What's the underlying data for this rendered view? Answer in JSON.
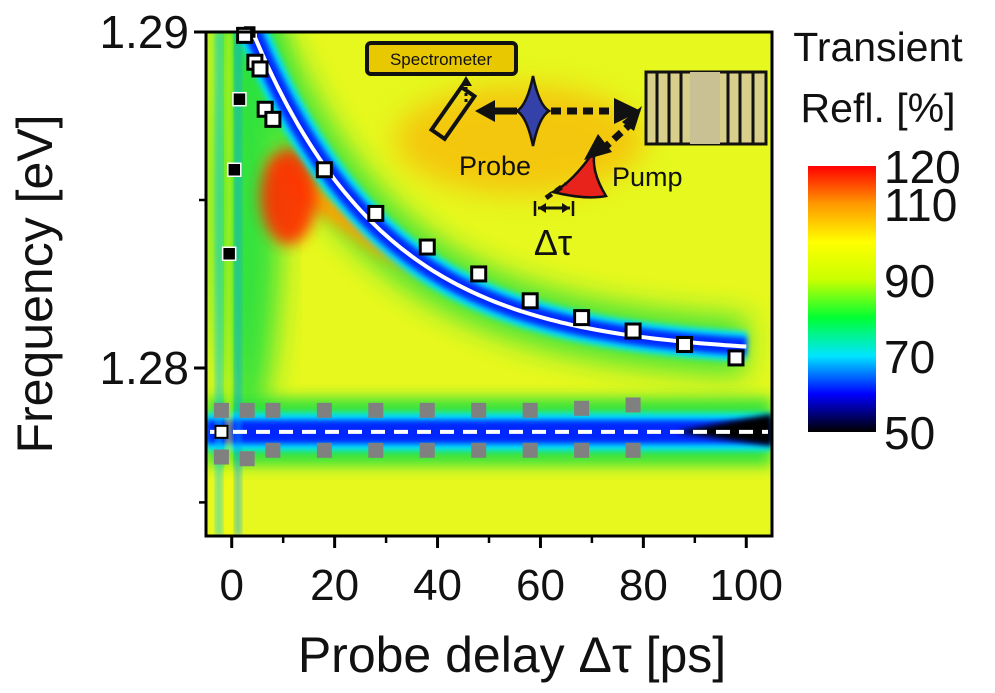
{
  "chart_data": {
    "type": "heatmap",
    "xlabel": "Probe delay Δτ [ps]",
    "ylabel": "Frequency [eV]",
    "xlim": [
      -5,
      105
    ],
    "ylim": [
      1.275,
      1.29
    ],
    "x_ticks": [
      0,
      20,
      40,
      60,
      80,
      100
    ],
    "x_tick_labels": [
      "0",
      "20",
      "40",
      "60",
      "80",
      "100"
    ],
    "y_ticks": [
      1.28,
      1.29
    ],
    "y_tick_labels": [
      "1.28",
      "1.29"
    ],
    "colorbar": {
      "title_line1": "Transient",
      "title_line2": "Refl. [%]",
      "range": [
        50,
        120
      ],
      "ticks": [
        50,
        70,
        90,
        110,
        120
      ],
      "tick_labels": [
        "50",
        "70",
        "90",
        "110",
        "120"
      ],
      "stops": [
        "#000000",
        "#0000ff",
        "#00e5ff",
        "#00ff33",
        "#c8ff00",
        "#ffff00",
        "#ff9900",
        "#ff0000"
      ]
    },
    "colors": {
      "background": "#e6f81e",
      "dip": "#0026ff",
      "dip_core": "#000000",
      "hot": "#ff2a00",
      "warm": "#ffa000",
      "green": "#20e040",
      "fit_line": "#ffffff",
      "marker_dark": "#000000",
      "marker_grey": "#808080"
    },
    "series": [
      {
        "marker": "black-filled",
        "points": [
          [
            -0.5,
            1.2834
          ],
          [
            0.5,
            1.2859
          ],
          [
            1.5,
            1.288
          ],
          [
            3.5,
            1.29
          ]
        ]
      },
      {
        "marker": "white-filled-black-edge",
        "points": [
          [
            2.5,
            1.2899
          ],
          [
            4.5,
            1.2891
          ],
          [
            5.5,
            1.2889
          ],
          [
            6.5,
            1.2877
          ],
          [
            8,
            1.2874
          ],
          [
            18,
            1.2859
          ],
          [
            28,
            1.2846
          ],
          [
            38,
            1.2836
          ],
          [
            48,
            1.2828
          ],
          [
            58,
            1.282
          ],
          [
            68,
            1.2815
          ],
          [
            78,
            1.2811
          ],
          [
            88,
            1.2807
          ],
          [
            98,
            1.2803
          ]
        ]
      },
      {
        "marker": "grey-upper-branch",
        "points": [
          [
            -2,
            1.27874
          ],
          [
            3,
            1.27874
          ],
          [
            8,
            1.27874
          ],
          [
            18,
            1.27874
          ],
          [
            28,
            1.27874
          ],
          [
            38,
            1.27874
          ],
          [
            48,
            1.27874
          ],
          [
            58,
            1.27874
          ],
          [
            68,
            1.2788
          ],
          [
            78,
            1.2789
          ]
        ]
      },
      {
        "marker": "grey-lower-branch",
        "points": [
          [
            -2,
            1.27735
          ],
          [
            3,
            1.2773
          ],
          [
            8,
            1.27755
          ],
          [
            18,
            1.27755
          ],
          [
            28,
            1.27755
          ],
          [
            38,
            1.27755
          ],
          [
            48,
            1.27755
          ],
          [
            58,
            1.27755
          ],
          [
            68,
            1.27755
          ],
          [
            78,
            1.27755
          ]
        ]
      },
      {
        "marker": "white-center-line",
        "points": [
          [
            -2,
            1.2781
          ]
        ]
      }
    ],
    "fit_curve": {
      "style": "solid-white",
      "x_range": [
        2,
        100
      ]
    },
    "baseline": {
      "style": "dashed-white",
      "y": 1.2781
    }
  },
  "inset": {
    "spectrometer_label": "Spectrometer",
    "probe_label": "Probe",
    "pump_label": "Pump",
    "delay_label": "Δτ"
  }
}
